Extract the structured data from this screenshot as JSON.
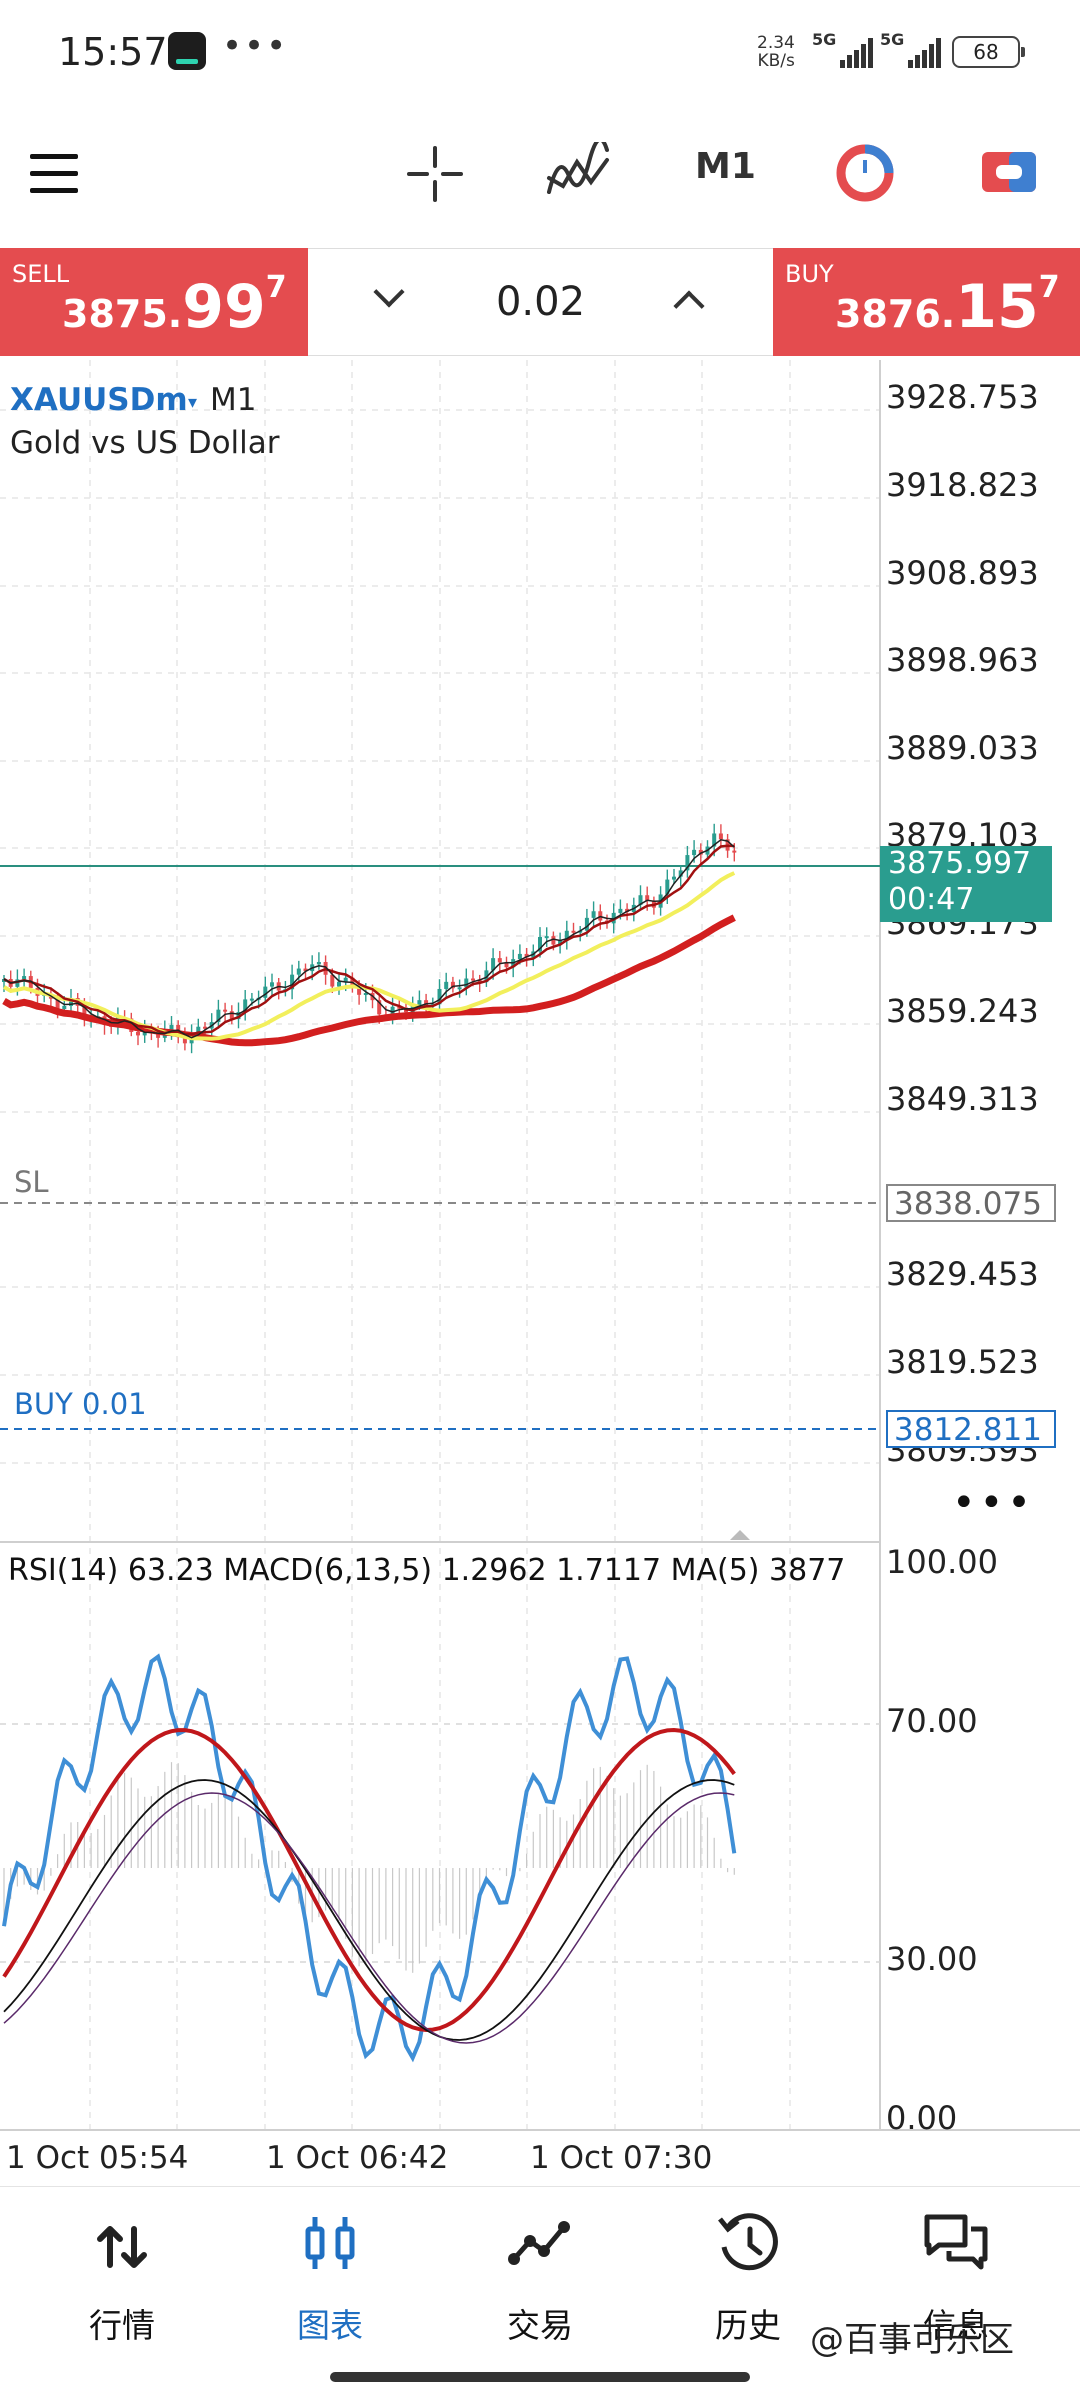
{
  "status_bar": {
    "time": "15:57",
    "dots": "•••",
    "speed_value": "2.34",
    "speed_unit": "KB/s",
    "signal1": "5G",
    "signal2": "5G",
    "battery": "68"
  },
  "toolbar": {
    "menu_icon": "hamburger-menu-icon",
    "crosshair_icon": "crosshair-icon",
    "indicator_icon": "indicator-icon",
    "timeframe": "M1",
    "timer_icon": "chart-clock-icon",
    "toggle_icon": "chart-toggle-icon"
  },
  "trade": {
    "sell_label": "SELL",
    "sell_price_small": "3875.",
    "sell_price_big": "99",
    "sell_price_sup": "7",
    "buy_label": "BUY",
    "buy_price_small": "3876.",
    "buy_price_big": "15",
    "buy_price_sup": "7",
    "lot": "0.02"
  },
  "chart": {
    "symbol": "XAUUSDm",
    "caret": "▾",
    "timeframe": "M1",
    "subtitle": "Gold vs US Dollar",
    "price_ticks": [
      "3928.753",
      "3918.823",
      "3908.893",
      "3898.963",
      "3889.033",
      "3879.103",
      "3869.173",
      "3859.243",
      "3849.313",
      "3829.453",
      "3819.523",
      "3809.593"
    ],
    "bid_price": "3875.997",
    "bid_timer": "00:47",
    "sl_label": "SL",
    "sl_price": "3838.075",
    "buy_line_label": "BUY 0.01",
    "buy_line_price": "3812.811",
    "more": "•••",
    "indicator_label": "RSI(14) 63.23 MACD(6,13,5) 1.2962 1.7117 MA(5) 3877",
    "indicator_ticks": [
      "100.00",
      "70.00",
      "30.00",
      "0.00"
    ],
    "time_ticks": [
      "1 Oct 05:54",
      "1 Oct 06:42",
      "1 Oct 07:30"
    ],
    "colors": {
      "bull": "#2a9d8f",
      "bear": "#e44c4f",
      "ma_red": "#d21f1f",
      "ma_yellow": "#f2ef5c",
      "rsi": "#3f8fd6",
      "bid_line": "#2a8f7f"
    }
  },
  "nav": {
    "items": [
      {
        "label": "行情",
        "icon": "quotes-icon"
      },
      {
        "label": "图表",
        "icon": "chart-icon"
      },
      {
        "label": "交易",
        "icon": "trade-icon"
      },
      {
        "label": "历史",
        "icon": "history-icon"
      },
      {
        "label": "信息",
        "icon": "messages-icon"
      }
    ]
  },
  "watermark": "@百事可乐区"
}
